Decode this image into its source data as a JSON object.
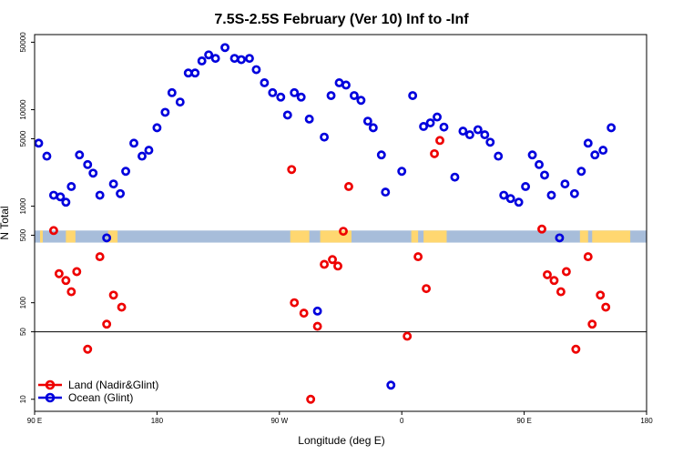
{
  "chart_data": {
    "type": "scatter",
    "title": "7.5S-2.5S February (Ver 10)   Inf to -Inf",
    "xlabel": "Longitude (deg E)",
    "ylabel": "N Total",
    "x_range": [
      90,
      540
    ],
    "y_scale": "log",
    "ylim": [
      7.5,
      60000
    ],
    "x_ticks": [
      {
        "value": 90,
        "label": "90 E"
      },
      {
        "value": 180,
        "label": "180"
      },
      {
        "value": 270,
        "label": "90 W"
      },
      {
        "value": 360,
        "label": "0"
      },
      {
        "value": 450,
        "label": "90 E"
      },
      {
        "value": 540,
        "label": "180"
      }
    ],
    "y_ticks": [
      {
        "value": 10,
        "label": "10"
      },
      {
        "value": 50,
        "label": "50"
      },
      {
        "value": 100,
        "label": "100"
      },
      {
        "value": 500,
        "label": "500"
      },
      {
        "value": 1000,
        "label": "1000"
      },
      {
        "value": 5000,
        "label": "5000"
      },
      {
        "value": 10000,
        "label": "10000"
      },
      {
        "value": 50000,
        "label": "50000"
      }
    ],
    "reference_line_y": 50,
    "band": {
      "y_range": [
        420,
        560
      ],
      "color": "#A7BDDA",
      "land_color": "#FFD770",
      "land_segments": [
        [
          94,
          96
        ],
        [
          113,
          120
        ],
        [
          144,
          151
        ],
        [
          278,
          292
        ],
        [
          300,
          323
        ],
        [
          367,
          372
        ],
        [
          376,
          393
        ],
        [
          491,
          497
        ],
        [
          500,
          528
        ]
      ]
    },
    "series": [
      {
        "name": "Land (Nadir&Glint)",
        "color": "#EE0000",
        "points": [
          [
            104,
            560
          ],
          [
            108,
            200
          ],
          [
            113,
            170
          ],
          [
            117,
            130
          ],
          [
            121,
            210
          ],
          [
            129,
            33
          ],
          [
            138,
            300
          ],
          [
            143,
            60
          ],
          [
            148,
            120
          ],
          [
            154,
            90
          ],
          [
            279,
            2400
          ],
          [
            281,
            100
          ],
          [
            288,
            78
          ],
          [
            293,
            10
          ],
          [
            298,
            57
          ],
          [
            303,
            250
          ],
          [
            309,
            280
          ],
          [
            313,
            240
          ],
          [
            317,
            550
          ],
          [
            321,
            1600
          ],
          [
            364,
            45
          ],
          [
            372,
            300
          ],
          [
            378,
            140
          ],
          [
            384,
            3500
          ],
          [
            388,
            4800
          ],
          [
            463,
            580
          ],
          [
            467,
            195
          ],
          [
            472,
            170
          ],
          [
            477,
            130
          ],
          [
            481,
            210
          ],
          [
            488,
            33
          ],
          [
            497,
            300
          ],
          [
            500,
            60
          ],
          [
            506,
            120
          ],
          [
            510,
            90
          ]
        ]
      },
      {
        "name": "Ocean (Glint)",
        "color": "#0000DD",
        "points": [
          [
            93,
            4500
          ],
          [
            99,
            3300
          ],
          [
            104,
            1300
          ],
          [
            109,
            1250
          ],
          [
            113,
            1100
          ],
          [
            117,
            1600
          ],
          [
            123,
            3400
          ],
          [
            129,
            2700
          ],
          [
            133,
            2200
          ],
          [
            138,
            1300
          ],
          [
            143,
            470
          ],
          [
            148,
            1700
          ],
          [
            153,
            1350
          ],
          [
            157,
            2300
          ],
          [
            163,
            4500
          ],
          [
            169,
            3300
          ],
          [
            174,
            3800
          ],
          [
            180,
            6500
          ],
          [
            186,
            9400
          ],
          [
            191,
            15000
          ],
          [
            197,
            12000
          ],
          [
            203,
            24000
          ],
          [
            208,
            24000
          ],
          [
            213,
            32000
          ],
          [
            218,
            37000
          ],
          [
            223,
            34000
          ],
          [
            230,
            44000
          ],
          [
            237,
            34000
          ],
          [
            242,
            33000
          ],
          [
            248,
            34000
          ],
          [
            253,
            26000
          ],
          [
            259,
            19000
          ],
          [
            265,
            15000
          ],
          [
            271,
            13500
          ],
          [
            276,
            8800
          ],
          [
            281,
            15000
          ],
          [
            286,
            13500
          ],
          [
            292,
            8000
          ],
          [
            298,
            82
          ],
          [
            303,
            5200
          ],
          [
            308,
            14000
          ],
          [
            314,
            19000
          ],
          [
            319,
            18000
          ],
          [
            325,
            14000
          ],
          [
            330,
            12500
          ],
          [
            335,
            7600
          ],
          [
            339,
            6500
          ],
          [
            345,
            3400
          ],
          [
            348,
            1400
          ],
          [
            352,
            14
          ],
          [
            360,
            2300
          ],
          [
            368,
            14000
          ],
          [
            376,
            6700
          ],
          [
            381,
            7300
          ],
          [
            386,
            8400
          ],
          [
            391,
            6600
          ],
          [
            399,
            2000
          ],
          [
            405,
            6000
          ],
          [
            410,
            5500
          ],
          [
            416,
            6200
          ],
          [
            421,
            5500
          ],
          [
            425,
            4600
          ],
          [
            431,
            3300
          ],
          [
            435,
            1300
          ],
          [
            440,
            1200
          ],
          [
            446,
            1100
          ],
          [
            451,
            1600
          ],
          [
            456,
            3400
          ],
          [
            461,
            2700
          ],
          [
            465,
            2100
          ],
          [
            470,
            1300
          ],
          [
            476,
            470
          ],
          [
            480,
            1700
          ],
          [
            487,
            1350
          ],
          [
            492,
            2300
          ],
          [
            497,
            4500
          ],
          [
            502,
            3400
          ],
          [
            508,
            3800
          ],
          [
            514,
            6500
          ]
        ]
      }
    ],
    "legend": {
      "position": "bottom-left",
      "entries": [
        "Land (Nadir&Glint)",
        "Ocean (Glint)"
      ]
    }
  }
}
